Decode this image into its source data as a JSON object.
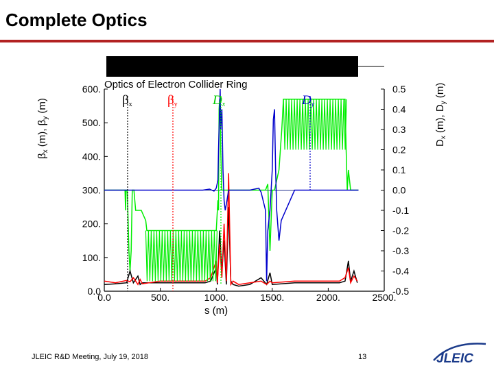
{
  "slide": {
    "title": "Complete Optics",
    "footer": "JLEIC R&D Meeting, July 19, 2018",
    "page_number": "13",
    "logo_text": "JLEIC",
    "accent_color": "#b22222"
  },
  "chart_data": {
    "type": "line",
    "title": "Optics of Electron Collider Ring",
    "xlabel": "s (m)",
    "ylabel_left": "βx (m), βy (m)",
    "ylabel_right": "Dx (m), Dy (m)",
    "xlim": [
      0,
      2500
    ],
    "ylim_left": [
      0,
      600
    ],
    "ylim_right": [
      -0.5,
      0.5
    ],
    "x_ticks": [
      "0.0",
      "500.",
      "1000.",
      "1500.",
      "2000.",
      "2500."
    ],
    "y_left_ticks": [
      "0.0",
      "100.",
      "200.",
      "300.",
      "400.",
      "500.",
      "600."
    ],
    "y_right_ticks": [
      "-0.5",
      "-0.4",
      "-0.3",
      "-0.2",
      "-0.1",
      "0.0",
      "0.1",
      "0.2",
      "0.3",
      "0.4",
      "0.5"
    ],
    "grid": false,
    "series": [
      {
        "name": "βx",
        "color": "#000000",
        "axis": "left",
        "x": [
          0,
          100,
          200,
          230,
          260,
          300,
          320,
          340,
          500,
          700,
          900,
          950,
          1000,
          1010,
          1030,
          1050,
          1070,
          1090,
          1110,
          1130,
          1150,
          1200,
          1300,
          1400,
          1450,
          1480,
          1500,
          1700,
          1900,
          2100,
          2150,
          2180,
          2200,
          2230,
          2260
        ],
        "y": [
          20,
          22,
          25,
          60,
          25,
          45,
          20,
          25,
          25,
          25,
          25,
          30,
          70,
          20,
          180,
          60,
          150,
          20,
          250,
          30,
          20,
          15,
          20,
          40,
          20,
          55,
          20,
          25,
          25,
          25,
          30,
          90,
          30,
          60,
          25
        ]
      },
      {
        "name": "βy",
        "color": "#ff0000",
        "axis": "left",
        "x": [
          0,
          100,
          200,
          230,
          260,
          300,
          320,
          340,
          500,
          700,
          900,
          950,
          1000,
          1010,
          1030,
          1050,
          1070,
          1090,
          1110,
          1130,
          1150,
          1200,
          1300,
          1400,
          1450,
          1480,
          1500,
          1700,
          1900,
          2100,
          2150,
          2180,
          2200,
          2230,
          2260
        ],
        "y": [
          30,
          25,
          32,
          28,
          40,
          20,
          35,
          22,
          30,
          30,
          30,
          40,
          90,
          25,
          140,
          40,
          200,
          30,
          350,
          20,
          30,
          20,
          25,
          30,
          20,
          30,
          25,
          30,
          30,
          30,
          40,
          70,
          25,
          45,
          30
        ]
      },
      {
        "name": "Dx",
        "color": "#00ee00",
        "axis": "right",
        "x": [
          0,
          160,
          175,
          185,
          190,
          195,
          205,
          210,
          220,
          230,
          240,
          250,
          265,
          280,
          330,
          370,
          380,
          990,
          995,
          1000,
          1005,
          1010,
          1015,
          1020,
          1025,
          1030,
          1035,
          1040,
          1050,
          1060,
          1100,
          1440,
          1460,
          1480,
          1500,
          1520,
          1560,
          1585,
          1595,
          1600,
          2150,
          2160,
          2170,
          2180,
          2200,
          2230,
          2270
        ],
        "y": [
          0,
          0,
          0,
          0,
          -0.1,
          0,
          0,
          -0.1,
          -0.3,
          -0.4,
          -0.3,
          0,
          0,
          -0.1,
          -0.1,
          -0.15,
          -0.2,
          -0.2,
          -0.2,
          -0.2,
          -0.15,
          -0.1,
          -0.05,
          -0.1,
          0.4,
          0.45,
          0.4,
          0.2,
          0,
          0,
          0,
          0,
          0.03,
          -0.3,
          0,
          0,
          0.1,
          0.3,
          0.4,
          0.45,
          0.45,
          0.2,
          0,
          0.1,
          0,
          0,
          0
        ]
      },
      {
        "name": "Dy",
        "color": "#0000cc",
        "axis": "right",
        "x": [
          0,
          880,
          940,
          980,
          1000,
          1015,
          1020,
          1030,
          1035,
          1040,
          1050,
          1060,
          1070,
          1080,
          1090,
          1110,
          1200,
          1300,
          1380,
          1400,
          1440,
          1450,
          1460,
          1480,
          1500,
          1510,
          1520,
          1530,
          1540,
          1560,
          1580,
          1700,
          2270
        ],
        "y": [
          0,
          0,
          0.005,
          -0.005,
          0.01,
          0.05,
          0.2,
          0.4,
          0.5,
          0.3,
          0.4,
          0.1,
          -0.05,
          -0.1,
          -0.07,
          0,
          0,
          0,
          0.01,
          -0.01,
          -0.1,
          -0.45,
          -0.2,
          -0.1,
          0.1,
          0.35,
          0.4,
          0.1,
          -0.1,
          -0.25,
          -0.15,
          0,
          0
        ]
      }
    ]
  }
}
